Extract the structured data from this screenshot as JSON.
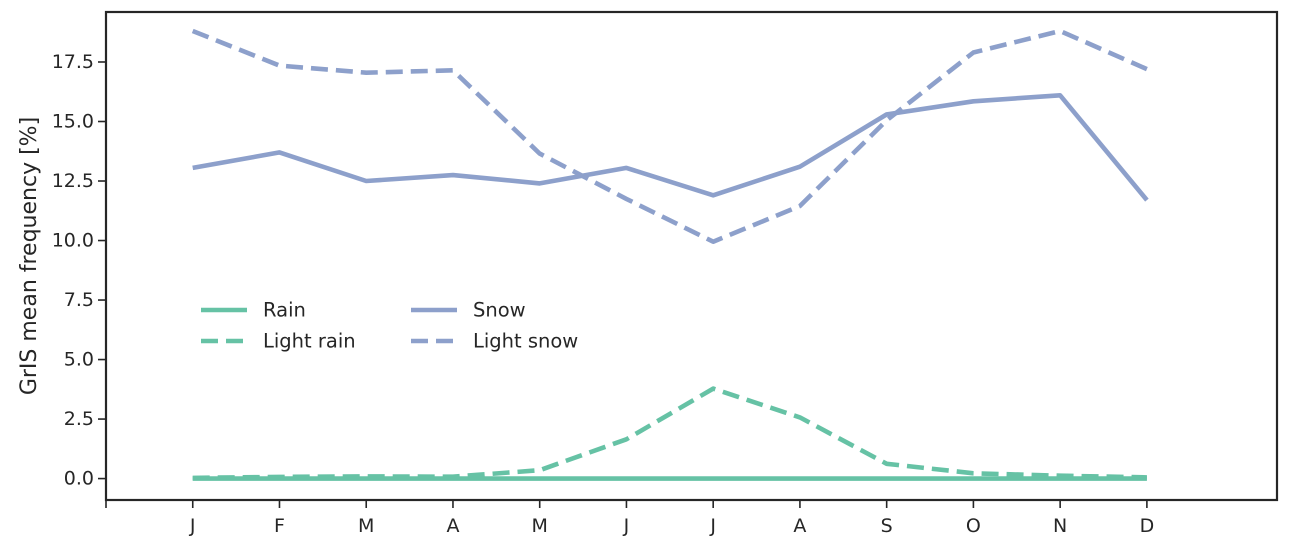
{
  "chart_data": {
    "type": "line",
    "ylabel": "GrIS mean frequency [%]",
    "xlabel": "",
    "categories": [
      "J",
      "F",
      "M",
      "A",
      "M",
      "J",
      "J",
      "A",
      "S",
      "O",
      "N",
      "D"
    ],
    "xlim": [
      -1,
      12.5
    ],
    "ylim": [
      -0.9,
      19.6
    ],
    "yticks": [
      0.0,
      2.5,
      5.0,
      7.5,
      10.0,
      12.5,
      15.0,
      17.5
    ],
    "ytick_labels": [
      "0.0",
      "2.5",
      "5.0",
      "7.5",
      "10.0",
      "12.5",
      "15.0",
      "17.5"
    ],
    "legend_placement": "center-left, two columns",
    "series": [
      {
        "name": "Rain",
        "color": "#66c2a5",
        "style": "solid",
        "values": [
          0.0,
          0.0,
          0.0,
          0.0,
          0.0,
          0.0,
          0.0,
          0.0,
          0.0,
          0.0,
          0.0,
          0.0
        ]
      },
      {
        "name": "Light rain",
        "color": "#66c2a5",
        "style": "dashed",
        "values": [
          0.03,
          0.07,
          0.09,
          0.08,
          0.35,
          1.65,
          3.78,
          2.57,
          0.62,
          0.22,
          0.12,
          0.05
        ]
      },
      {
        "name": "Snow",
        "color": "#8da0cb",
        "style": "solid",
        "values": [
          13.05,
          13.7,
          12.5,
          12.75,
          12.4,
          13.05,
          11.9,
          13.1,
          15.3,
          15.85,
          16.1,
          11.7
        ]
      },
      {
        "name": "Light snow",
        "color": "#8da0cb",
        "style": "dashed",
        "values": [
          18.8,
          17.35,
          17.05,
          17.15,
          13.65,
          11.75,
          9.95,
          11.45,
          15.05,
          17.9,
          18.8,
          17.2
        ]
      }
    ]
  }
}
